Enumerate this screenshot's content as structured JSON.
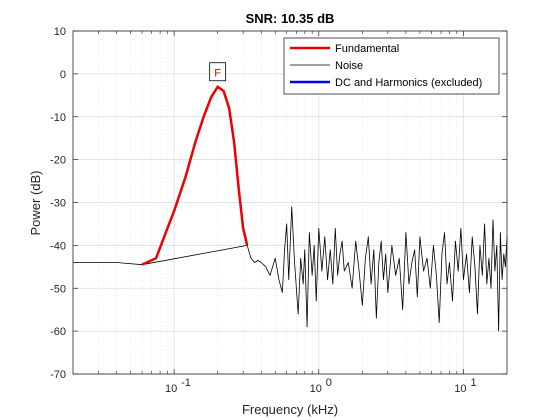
{
  "chart_data": {
    "type": "line",
    "title": "SNR:  10.35 dB",
    "xlabel": "Frequency (kHz)",
    "ylabel": "Power (dB)",
    "xscale": "log",
    "xlim": [
      0.02,
      20
    ],
    "ylim": [
      -70,
      10
    ],
    "y_ticks": [
      10,
      0,
      -10,
      -20,
      -30,
      -40,
      -50,
      -60,
      -70
    ],
    "x_ticks": [
      {
        "value": 0.1,
        "base": "10",
        "exp": "-1"
      },
      {
        "value": 1,
        "base": "10",
        "exp": "0"
      },
      {
        "value": 10,
        "base": "10",
        "exp": "1"
      }
    ],
    "grid": true,
    "minor_grid": true,
    "legend_position": "top-right",
    "annotation": {
      "text": "F",
      "x": 0.2,
      "y": -3,
      "color": "#dd0000"
    },
    "series": [
      {
        "name": "Fundamental",
        "color": "#ee0000",
        "width": 2.5,
        "x": [
          0.06,
          0.075,
          0.09,
          0.1,
          0.12,
          0.14,
          0.16,
          0.18,
          0.2,
          0.22,
          0.24,
          0.26,
          0.28,
          0.3,
          0.32
        ],
        "y": [
          -44.5,
          -43,
          -36,
          -32,
          -24,
          -16,
          -10,
          -5.5,
          -3,
          -4,
          -8,
          -16,
          -27,
          -36,
          -40
        ]
      },
      {
        "name": "Noise",
        "color": "#000000",
        "width": 0.8,
        "x": [
          0.02,
          0.04,
          0.06,
          0.32,
          0.34,
          0.36,
          0.38,
          0.4,
          0.43,
          0.46,
          0.5,
          0.53,
          0.56,
          0.58,
          0.6,
          0.62,
          0.65,
          0.68,
          0.7,
          0.72,
          0.75,
          0.78,
          0.8,
          0.83,
          0.86,
          0.9,
          0.93,
          0.96,
          1.0,
          1.05,
          1.1,
          1.15,
          1.2,
          1.25,
          1.3,
          1.35,
          1.4,
          1.45,
          1.5,
          1.6,
          1.7,
          1.8,
          1.9,
          2.0,
          2.1,
          2.2,
          2.3,
          2.4,
          2.5,
          2.6,
          2.7,
          2.8,
          2.9,
          3.0,
          3.2,
          3.4,
          3.6,
          3.8,
          4.0,
          4.2,
          4.4,
          4.6,
          4.8,
          5.0,
          5.3,
          5.6,
          5.9,
          6.2,
          6.5,
          6.8,
          7.1,
          7.4,
          7.7,
          8.0,
          8.4,
          8.8,
          9.2,
          9.6,
          10.0,
          10.5,
          11.0,
          11.5,
          12.0,
          12.5,
          13.0,
          13.5,
          14.0,
          14.5,
          15.0,
          15.5,
          16.0,
          16.5,
          17.0,
          17.5,
          18.0,
          18.5,
          19.0,
          19.5,
          20.0
        ],
        "y": [
          -44,
          -44,
          -44.5,
          -40,
          -43,
          -44,
          -43.5,
          -44,
          -45,
          -47,
          -43,
          -48,
          -51,
          -41,
          -35,
          -48,
          -31,
          -44,
          -50,
          -56,
          -43,
          -49,
          -41,
          -59,
          -37,
          -47,
          -40,
          -53,
          -36,
          -46,
          -38,
          -48,
          -41,
          -49,
          -36,
          -47,
          -42,
          -39,
          -46,
          -44,
          -50,
          -39,
          -46,
          -54,
          -43,
          -38,
          -49,
          -41,
          -57,
          -44,
          -39,
          -48,
          -42,
          -51,
          -40,
          -47,
          -43,
          -55,
          -37,
          -49,
          -44,
          -41,
          -52,
          -38,
          -46,
          -43,
          -50,
          -40,
          -47,
          -58,
          -42,
          -37,
          -49,
          -44,
          -53,
          -39,
          -46,
          -36,
          -48,
          -42,
          -51,
          -38,
          -45,
          -56,
          -40,
          -47,
          -35,
          -49,
          -43,
          -50,
          -34,
          -46,
          -40,
          -60,
          -37,
          -48,
          -42,
          -45,
          -38
        ]
      },
      {
        "name": "DC and Harmonics (excluded)",
        "color": "#0000ee",
        "width": 2.5,
        "x": [],
        "y": []
      }
    ]
  }
}
